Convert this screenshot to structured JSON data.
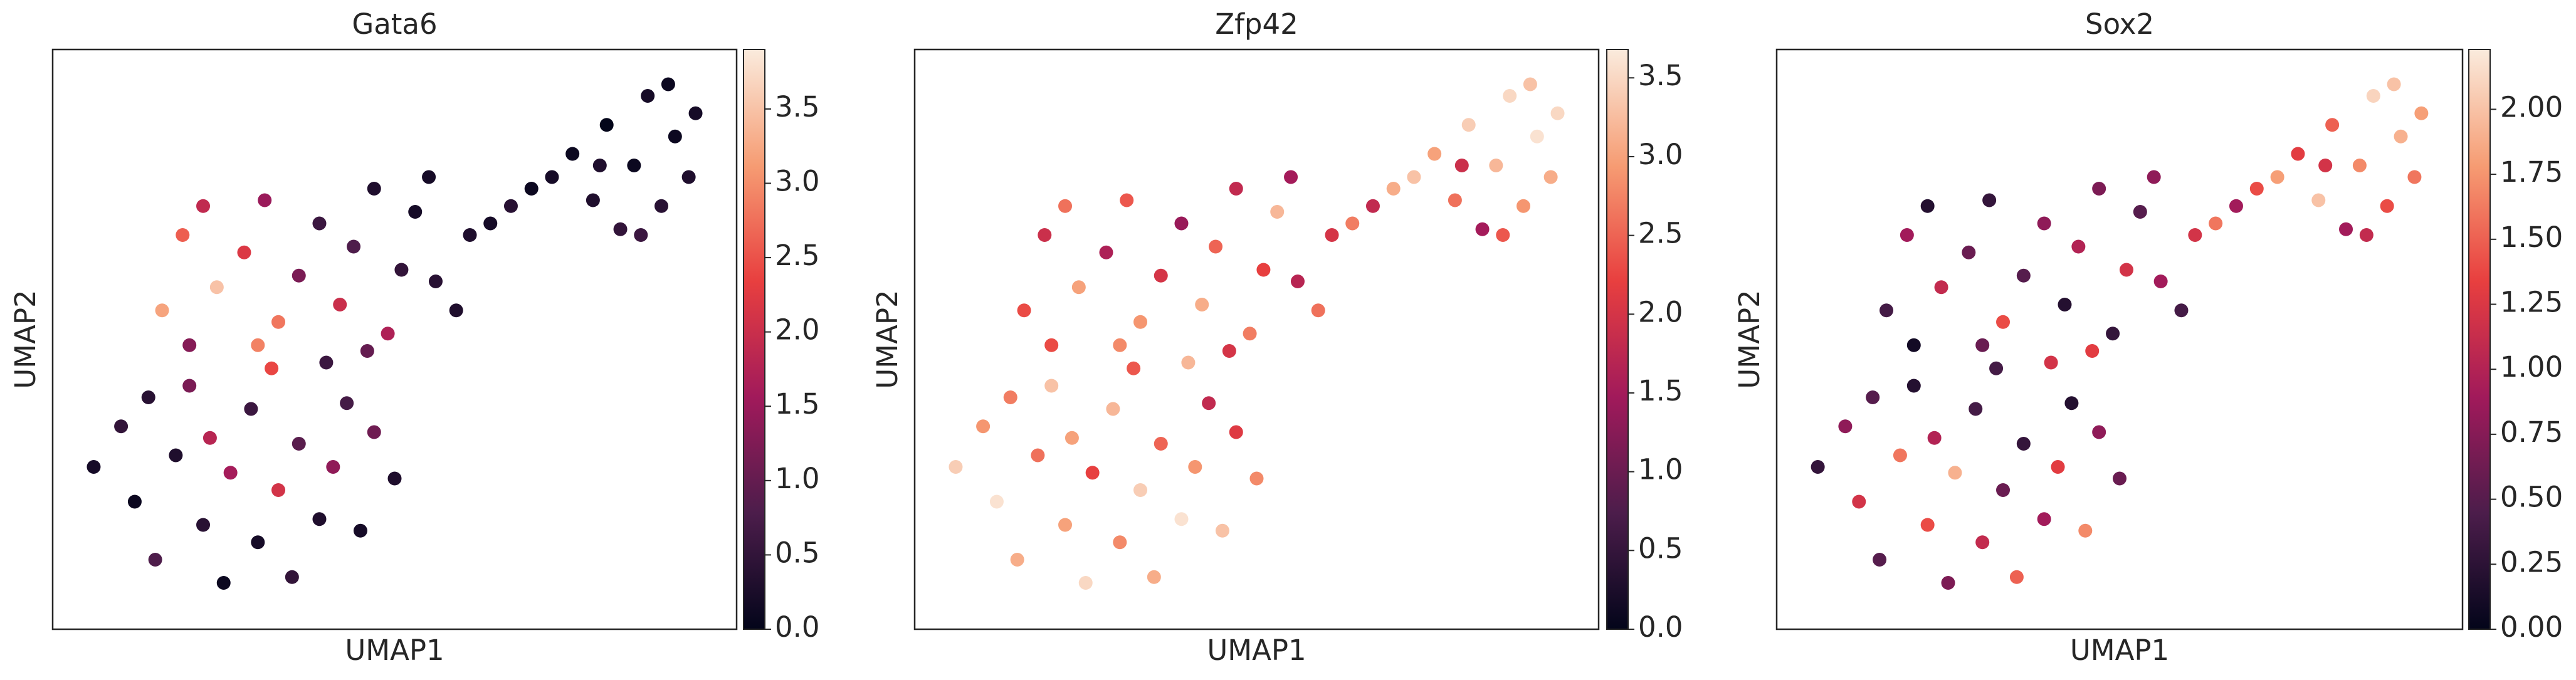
{
  "chart_data": [
    {
      "type": "scatter",
      "title": "Gata6",
      "x_label": "UMAP1",
      "y_label": "UMAP2",
      "xlim": [
        0,
        10
      ],
      "ylim": [
        0,
        10
      ],
      "x": [
        0.6,
        1.0,
        1.2,
        1.5,
        1.8,
        2.0,
        2.2,
        2.5,
        2.6,
        2.9,
        3.0,
        3.3,
        3.5,
        3.6,
        3.9,
        4.1,
        4.3,
        4.5,
        1.4,
        2.3,
        3.2,
        4.0,
        4.7,
        5.0,
        1.6,
        1.9,
        2.2,
        2.4,
        2.8,
        3.1,
        3.3,
        3.6,
        3.9,
        4.2,
        4.4,
        4.7,
        4.9,
        5.1,
        5.3,
        5.6,
        5.9,
        3.0,
        4.6,
        5.5,
        2.0,
        6.1,
        6.4,
        6.7,
        7.0,
        7.3,
        7.6,
        7.9,
        8.1,
        8.3,
        8.5,
        8.7,
        8.9,
        9.1,
        9.3,
        8.6,
        9.0,
        9.4,
        8.0
      ],
      "y": [
        2.8,
        3.5,
        2.2,
        1.2,
        3.0,
        4.2,
        1.8,
        0.8,
        2.7,
        3.8,
        1.5,
        2.4,
        0.9,
        3.2,
        1.9,
        2.8,
        3.9,
        1.7,
        4.0,
        3.3,
        4.5,
        4.6,
        3.4,
        2.6,
        5.5,
        6.8,
        7.3,
        5.9,
        6.5,
        7.4,
        5.3,
        6.1,
        7.0,
        5.6,
        6.6,
        7.6,
        5.1,
        6.2,
        7.2,
        6.0,
        5.5,
        4.9,
        4.8,
        7.8,
        4.9,
        6.8,
        7.0,
        7.3,
        7.6,
        7.8,
        8.2,
        7.4,
        8.7,
        6.9,
        8.0,
        9.2,
        7.3,
        8.5,
        7.8,
        6.8,
        9.4,
        8.9,
        8.0
      ],
      "values": [
        0.2,
        0.5,
        0.1,
        0.8,
        0.3,
        1.2,
        0.4,
        0.1,
        1.6,
        0.6,
        0.2,
        2.1,
        0.5,
        0.9,
        0.3,
        1.4,
        0.7,
        0.2,
        0.4,
        1.8,
        2.4,
        0.6,
        1.1,
        0.3,
        3.2,
        2.6,
        1.9,
        3.5,
        2.2,
        1.5,
        2.8,
        1.2,
        0.6,
        2.0,
        0.8,
        0.3,
        1.7,
        0.5,
        0.2,
        0.4,
        0.3,
        2.9,
        1.0,
        0.2,
        1.3,
        0.3,
        0.2,
        0.4,
        0.1,
        0.2,
        0.1,
        0.3,
        0.0,
        0.5,
        0.1,
        0.2,
        0.4,
        0.1,
        0.3,
        0.6,
        0.1,
        0.2,
        0.3
      ],
      "clim": [
        0,
        3.9
      ],
      "cticks": [
        {
          "value": 0,
          "label": "0.0"
        },
        0.5,
        {
          "value": 1,
          "label": "1.0"
        },
        1.5,
        {
          "value": 2,
          "label": "2.0"
        },
        2.5,
        {
          "value": 3,
          "label": "3.0"
        },
        3.5
      ],
      "colormap": [
        "#03051a",
        "#4c1d4b",
        "#a11a5b",
        "#e83f3f",
        "#f69c73",
        "#faebdd"
      ]
    },
    {
      "type": "scatter",
      "title": "Zfp42",
      "x_label": "UMAP1",
      "y_label": "UMAP2",
      "xlim": [
        0,
        10
      ],
      "ylim": [
        0,
        10
      ],
      "x": [
        0.6,
        1.0,
        1.2,
        1.5,
        1.8,
        2.0,
        2.2,
        2.5,
        2.6,
        2.9,
        3.0,
        3.3,
        3.5,
        3.6,
        3.9,
        4.1,
        4.3,
        4.5,
        1.4,
        2.3,
        3.2,
        4.0,
        4.7,
        5.0,
        1.6,
        1.9,
        2.2,
        2.4,
        2.8,
        3.1,
        3.3,
        3.6,
        3.9,
        4.2,
        4.4,
        4.7,
        4.9,
        5.1,
        5.3,
        5.6,
        5.9,
        3.0,
        4.6,
        5.5,
        2.0,
        6.1,
        6.4,
        6.7,
        7.0,
        7.3,
        7.6,
        7.9,
        8.1,
        8.3,
        8.5,
        8.7,
        8.9,
        9.1,
        9.3,
        8.6,
        9.0,
        9.4,
        8.0
      ],
      "y": [
        2.8,
        3.5,
        2.2,
        1.2,
        3.0,
        4.2,
        1.8,
        0.8,
        2.7,
        3.8,
        1.5,
        2.4,
        0.9,
        3.2,
        1.9,
        2.8,
        3.9,
        1.7,
        4.0,
        3.3,
        4.5,
        4.6,
        3.4,
        2.6,
        5.5,
        6.8,
        7.3,
        5.9,
        6.5,
        7.4,
        5.3,
        6.1,
        7.0,
        5.6,
        6.6,
        7.6,
        5.1,
        6.2,
        7.2,
        6.0,
        5.5,
        4.9,
        4.8,
        7.8,
        4.9,
        6.8,
        7.0,
        7.3,
        7.6,
        7.8,
        8.2,
        7.4,
        8.7,
        6.9,
        8.0,
        9.2,
        7.3,
        8.5,
        7.8,
        6.8,
        9.4,
        8.9,
        8.0
      ],
      "values": [
        3.4,
        2.9,
        3.6,
        3.1,
        2.6,
        3.3,
        3.0,
        3.5,
        2.2,
        3.2,
        2.8,
        3.4,
        3.1,
        2.5,
        3.6,
        2.9,
        1.8,
        3.3,
        2.7,
        3.0,
        2.4,
        3.2,
        2.1,
        2.8,
        2.3,
        1.9,
        2.6,
        3.0,
        1.6,
        2.4,
        2.9,
        2.0,
        1.4,
        3.1,
        2.5,
        1.8,
        2.7,
        2.2,
        3.2,
        1.7,
        2.6,
        2.8,
        2.0,
        1.5,
        2.3,
        2.0,
        2.7,
        1.8,
        3.1,
        3.3,
        3.0,
        2.6,
        3.4,
        1.5,
        3.2,
        3.5,
        2.9,
        3.6,
        3.1,
        2.4,
        3.3,
        3.5,
        1.9
      ],
      "clim": [
        0,
        3.68
      ],
      "cticks": [
        {
          "value": 0,
          "label": "0.0"
        },
        0.5,
        {
          "value": 1,
          "label": "1.0"
        },
        1.5,
        {
          "value": 2,
          "label": "2.0"
        },
        2.5,
        {
          "value": 3,
          "label": "3.0"
        },
        3.5
      ],
      "colormap": [
        "#03051a",
        "#4c1d4b",
        "#a11a5b",
        "#e83f3f",
        "#f69c73",
        "#faebdd"
      ]
    },
    {
      "type": "scatter",
      "title": "Sox2",
      "x_label": "UMAP1",
      "y_label": "UMAP2",
      "xlim": [
        0,
        10
      ],
      "ylim": [
        0,
        10
      ],
      "x": [
        0.6,
        1.0,
        1.2,
        1.5,
        1.8,
        2.0,
        2.2,
        2.5,
        2.6,
        2.9,
        3.0,
        3.3,
        3.5,
        3.6,
        3.9,
        4.1,
        4.3,
        4.5,
        1.4,
        2.3,
        3.2,
        4.0,
        4.7,
        5.0,
        1.6,
        1.9,
        2.2,
        2.4,
        2.8,
        3.1,
        3.3,
        3.6,
        3.9,
        4.2,
        4.4,
        4.7,
        4.9,
        5.1,
        5.3,
        5.6,
        5.9,
        3.0,
        4.6,
        5.5,
        2.0,
        6.1,
        6.4,
        6.7,
        7.0,
        7.3,
        7.6,
        7.9,
        8.1,
        8.3,
        8.5,
        8.7,
        8.9,
        9.1,
        9.3,
        8.6,
        9.0,
        9.4,
        8.0
      ],
      "y": [
        2.8,
        3.5,
        2.2,
        1.2,
        3.0,
        4.2,
        1.8,
        0.8,
        2.7,
        3.8,
        1.5,
        2.4,
        0.9,
        3.2,
        1.9,
        2.8,
        3.9,
        1.7,
        4.0,
        3.3,
        4.5,
        4.6,
        3.4,
        2.6,
        5.5,
        6.8,
        7.3,
        5.9,
        6.5,
        7.4,
        5.3,
        6.1,
        7.0,
        5.6,
        6.6,
        7.6,
        5.1,
        6.2,
        7.2,
        6.0,
        5.5,
        4.9,
        4.8,
        7.8,
        4.9,
        6.8,
        7.0,
        7.3,
        7.6,
        7.8,
        8.2,
        7.4,
        8.7,
        6.9,
        8.0,
        9.2,
        7.3,
        8.5,
        7.8,
        6.8,
        9.4,
        8.9,
        8.0
      ],
      "values": [
        0.3,
        0.8,
        1.2,
        0.5,
        1.6,
        0.2,
        1.4,
        0.7,
        1.9,
        0.4,
        1.1,
        0.6,
        1.5,
        0.3,
        0.9,
        1.3,
        0.2,
        1.7,
        0.5,
        1.0,
        0.4,
        1.2,
        0.8,
        0.6,
        0.4,
        0.9,
        0.2,
        1.1,
        0.6,
        0.3,
        1.4,
        0.5,
        0.8,
        0.2,
        1.0,
        0.7,
        0.3,
        1.2,
        0.5,
        0.9,
        0.4,
        0.6,
        1.3,
        0.8,
        0.1,
        1.2,
        1.6,
        0.9,
        1.4,
        1.8,
        1.3,
        2.0,
        1.5,
        0.9,
        1.7,
        2.1,
        1.4,
        1.9,
        1.6,
        1.1,
        2.0,
        1.8,
        1.2
      ],
      "clim": [
        0,
        2.23
      ],
      "cticks": [
        {
          "value": 0,
          "label": "0.00"
        },
        0.25,
        {
          "value": 0.5,
          "label": "0.50"
        },
        0.75,
        {
          "value": 1,
          "label": "1.00"
        },
        1.25,
        {
          "value": 1.5,
          "label": "1.50"
        },
        1.75,
        {
          "value": 2,
          "label": "2.00"
        }
      ],
      "colormap": [
        "#03051a",
        "#4c1d4b",
        "#a11a5b",
        "#e83f3f",
        "#f69c73",
        "#faebdd"
      ]
    }
  ]
}
